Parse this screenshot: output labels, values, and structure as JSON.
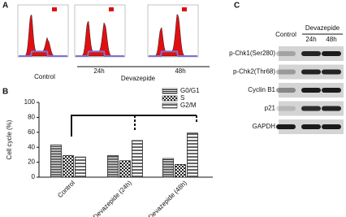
{
  "panel_labels": [
    "A",
    "B",
    "C"
  ],
  "panel_a": {
    "samples": [
      "Control",
      "24h",
      "48h"
    ],
    "group_label": "Devazepide"
  },
  "chart_data": {
    "type": "bar",
    "ylabel": "Cell cycle (%)",
    "categories": [
      "Control",
      "Devazepide (24h)",
      "Devazepide (48h)"
    ],
    "series": [
      {
        "name": "G0/G1",
        "color": "#222",
        "pattern": "hlines",
        "values": [
          43,
          29,
          25
        ]
      },
      {
        "name": "S",
        "color": "#222",
        "pattern": "checker",
        "values": [
          29,
          22,
          17
        ]
      },
      {
        "name": "G2/M",
        "color": "#222",
        "pattern": "stripes",
        "values": [
          27,
          49,
          59
        ]
      }
    ],
    "ylim": [
      0,
      100
    ],
    "yticks": [
      0,
      20,
      40,
      60,
      80,
      100
    ]
  },
  "panel_c": {
    "group_label": "Devazepide",
    "columns": [
      "Control",
      "24h",
      "48h"
    ],
    "rows": [
      "p-Chk1(Ser280)",
      "p-Chk2(Thr68)",
      "Cyclin B1",
      "p21",
      "GAPDH"
    ]
  }
}
